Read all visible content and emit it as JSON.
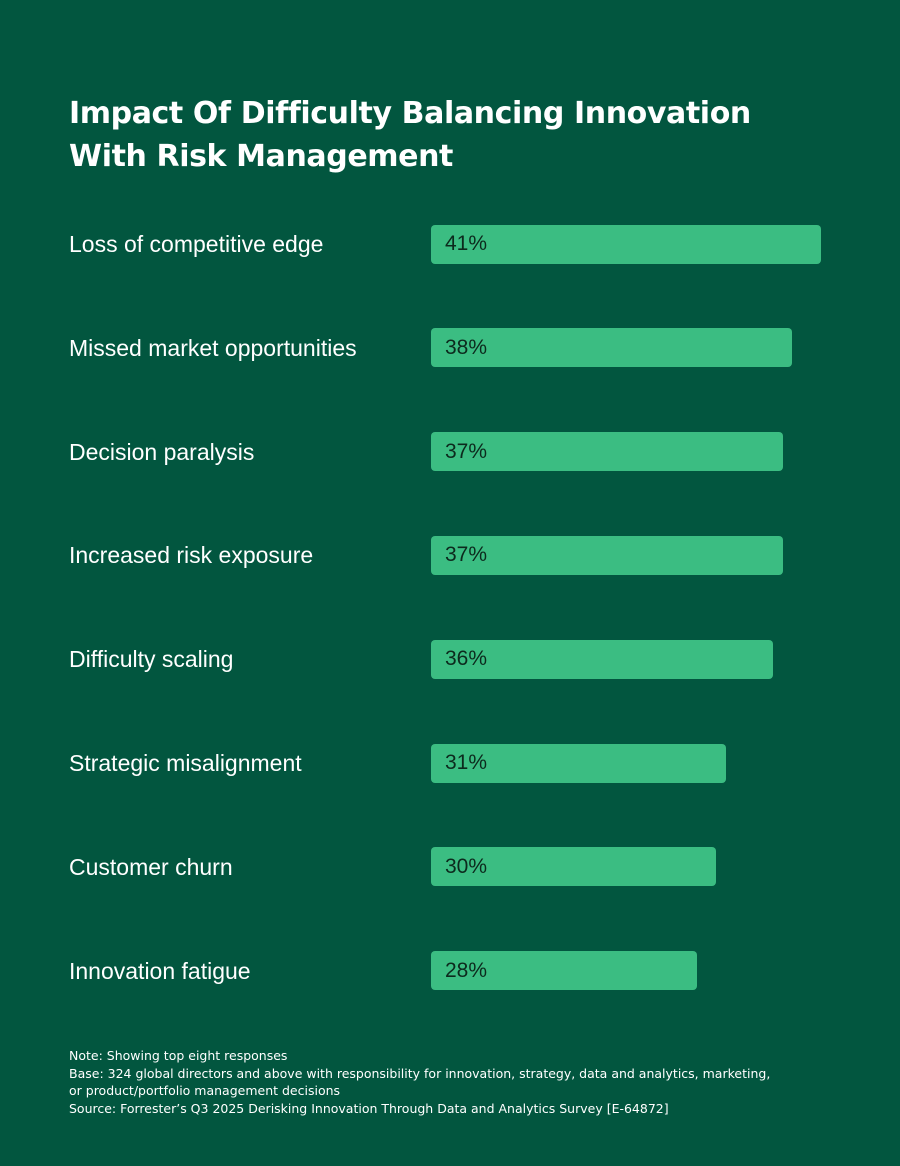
{
  "title_lines": [
    "Impact Of Difficulty Balancing Innovation",
    "With Risk Management"
  ],
  "chart_data": {
    "type": "bar",
    "orientation": "horizontal",
    "title": "Impact Of Difficulty Balancing Innovation With Risk Management",
    "categories": [
      "Loss of competitive edge",
      "Missed market opportunities",
      "Decision paralysis",
      "Increased risk exposure",
      "Difficulty scaling",
      "Strategic misalignment",
      "Customer churn",
      "Innovation fatigue"
    ],
    "values": [
      41,
      38,
      37,
      37,
      36,
      31,
      30,
      28
    ],
    "value_labels": [
      "41%",
      "38%",
      "37%",
      "37%",
      "36%",
      "31%",
      "30%",
      "28%"
    ],
    "unit": "%",
    "grid": false,
    "legend": "none"
  },
  "notes": {
    "note": "Note: Showing top eight responses",
    "base_line1": "Base: 324 global directors and above with responsibility for innovation, strategy, data and analytics, marketing,",
    "base_line2": "or product/portfolio management decisions",
    "source": "Source: Forrester’s Q3 2025 Derisking Innovation Through Data and Analytics Survey [E-64872]"
  },
  "colors": {
    "background": "#02563f",
    "bar": "#3bbd82",
    "value_text": "#0c2a1d",
    "text": "#ffffff"
  }
}
